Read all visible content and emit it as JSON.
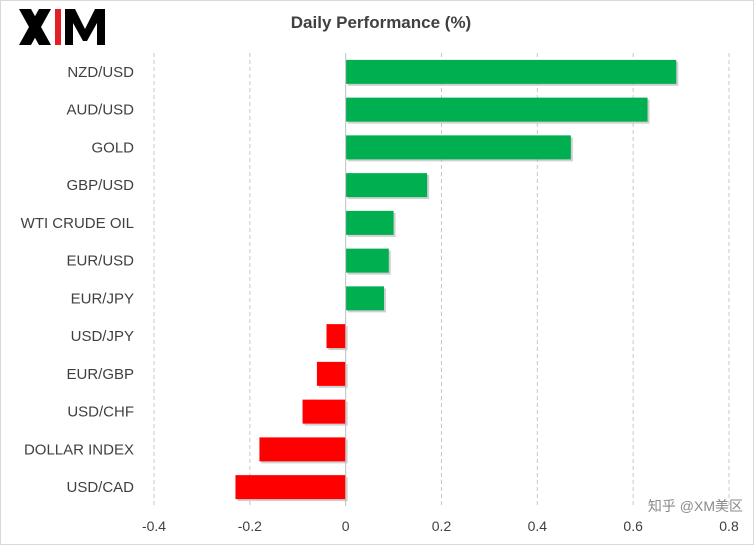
{
  "chart_data": {
    "type": "bar",
    "orientation": "horizontal",
    "title": "Daily Performance  (%)",
    "xlabel": "",
    "ylabel": "",
    "xlim": [
      -0.4,
      0.8
    ],
    "x_ticks": [
      "-0.4",
      "-0.2",
      "0",
      "0.2",
      "0.4",
      "0.6",
      "0.8"
    ],
    "grid": "vertical dashed",
    "categories": [
      "NZD/USD",
      "AUD/USD",
      "GOLD",
      "GBP/USD",
      "WTI CRUDE OIL",
      "EUR/USD",
      "EUR/JPY",
      "USD/JPY",
      "EUR/GBP",
      "USD/CHF",
      "DOLLAR INDEX",
      "USD/CAD"
    ],
    "values": [
      0.69,
      0.63,
      0.47,
      0.17,
      0.1,
      0.09,
      0.08,
      -0.04,
      -0.06,
      -0.09,
      -0.18,
      -0.23
    ],
    "colors": {
      "positive": "#00b050",
      "negative": "#ff0000"
    }
  },
  "brand": {
    "logo_text": "XM",
    "logo_color": "#000000",
    "logo_accent": "#e31f26"
  },
  "watermark": "知乎 @XM美区"
}
